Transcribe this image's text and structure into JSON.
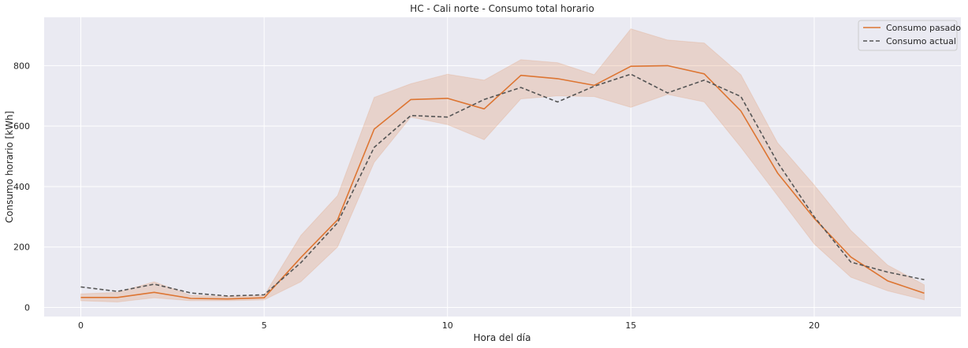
{
  "chart_data": {
    "type": "line",
    "title": "HC - Cali norte - Consumo total horario",
    "xlabel": "Hora del día",
    "ylabel": "Consumo horario [kWh]",
    "xlim": [
      -1,
      24
    ],
    "ylim": [
      -30,
      960
    ],
    "x_ticks": [
      0,
      5,
      10,
      15,
      20
    ],
    "y_ticks": [
      0,
      200,
      400,
      600,
      800
    ],
    "grid": true,
    "legend_position": "top-right",
    "x": [
      0,
      1,
      2,
      3,
      4,
      5,
      6,
      7,
      8,
      9,
      10,
      11,
      12,
      13,
      14,
      15,
      16,
      17,
      18,
      19,
      20,
      21,
      22,
      23
    ],
    "series": [
      {
        "name": "Consumo pasado",
        "style": "solid",
        "color": "#dd7532",
        "values": [
          33,
          33,
          50,
          30,
          28,
          32,
          165,
          290,
          590,
          688,
          692,
          657,
          768,
          757,
          735,
          798,
          800,
          773,
          650,
          445,
          295,
          167,
          88,
          47
        ],
        "band_low": [
          22,
          18,
          32,
          22,
          22,
          25,
          85,
          200,
          480,
          630,
          605,
          555,
          690,
          700,
          698,
          662,
          705,
          680,
          530,
          370,
          210,
          100,
          55,
          25
        ],
        "band_high": [
          45,
          50,
          85,
          40,
          36,
          40,
          238,
          370,
          695,
          740,
          772,
          752,
          820,
          810,
          770,
          922,
          885,
          875,
          770,
          545,
          405,
          255,
          140,
          75
        ]
      },
      {
        "name": "Consumo actual",
        "style": "dashed",
        "color": "#555555",
        "values": [
          68,
          53,
          77,
          48,
          38,
          42,
          148,
          280,
          530,
          635,
          630,
          688,
          728,
          680,
          732,
          772,
          710,
          752,
          698,
          480,
          300,
          150,
          117,
          92
        ]
      }
    ]
  },
  "colors": {
    "plot_background": "#eaeaf2",
    "grid": "#ffffff",
    "band": "#dd7532"
  }
}
